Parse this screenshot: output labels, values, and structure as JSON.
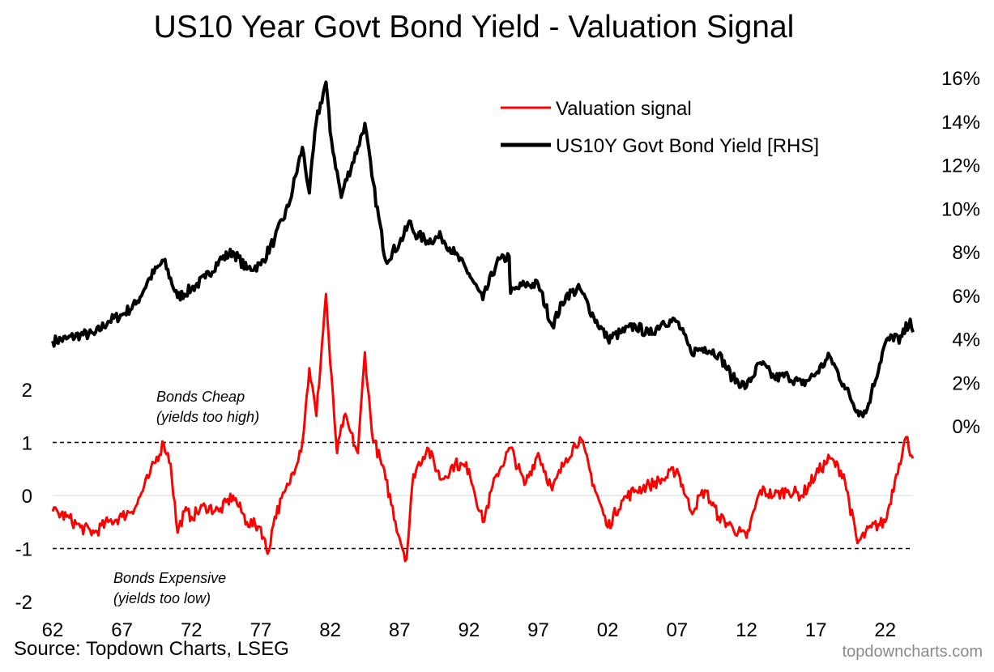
{
  "chart_data": {
    "type": "line",
    "title": "US10 Year Govt Bond Yield - Valuation Signal",
    "x_axis": {
      "range": [
        1962,
        2024
      ],
      "tick_values": [
        1962,
        1967,
        1972,
        1977,
        1982,
        1987,
        1992,
        1997,
        2002,
        2007,
        2012,
        2017,
        2022
      ],
      "tick_labels": [
        "62",
        "67",
        "72",
        "77",
        "82",
        "87",
        "92",
        "97",
        "02",
        "07",
        "12",
        "17",
        "22"
      ]
    },
    "left_axis": {
      "range": [
        -2,
        2
      ],
      "ticks": [
        2,
        1,
        0,
        -1,
        -2
      ],
      "tick_labels": [
        "2",
        "1",
        "0",
        "-1",
        "-2"
      ]
    },
    "right_axis": {
      "range": [
        0,
        16
      ],
      "ticks": [
        16,
        14,
        12,
        10,
        8,
        6,
        4,
        2,
        0
      ],
      "tick_labels": [
        "16%",
        "14%",
        "12%",
        "10%",
        "8%",
        "6%",
        "4%",
        "2%",
        "0%"
      ]
    },
    "reference_lines": [
      {
        "axis": "left",
        "value": 1,
        "style": "dashed"
      },
      {
        "axis": "left",
        "value": -1,
        "style": "dashed"
      },
      {
        "axis": "left",
        "value": 0,
        "style": "solid-light"
      }
    ],
    "legend": {
      "position": "top-right",
      "entries": [
        {
          "label": "Valuation signal",
          "color": "#ff0000"
        },
        {
          "label": "US10Y Govt Bond Yield [RHS]",
          "color": "#000000"
        }
      ]
    },
    "annotations": [
      {
        "lines": [
          "Bonds Cheap",
          "(yields too high)"
        ]
      },
      {
        "lines": [
          "Bonds Expensive",
          "(yields too low)"
        ]
      }
    ],
    "series": [
      {
        "name": "US10Y Govt Bond Yield [RHS]",
        "axis": "right",
        "color": "#000000",
        "x": [
          1962,
          1963,
          1964,
          1965,
          1966,
          1967,
          1968,
          1969,
          1970,
          1971,
          1972,
          1973,
          1974,
          1975,
          1976,
          1977,
          1978,
          1979,
          1980,
          1980.5,
          1981,
          1981.7,
          1982,
          1982.8,
          1983,
          1984,
          1984.5,
          1985,
          1986,
          1987,
          1987.8,
          1988,
          1989,
          1990,
          1991,
          1992,
          1993,
          1994,
          1994.9,
          1995,
          1996,
          1997,
          1998,
          1999,
          2000,
          2001,
          2002,
          2003,
          2004,
          2005,
          2006,
          2007,
          2008,
          2009,
          2010,
          2011,
          2012,
          2013,
          2014,
          2015,
          2016,
          2017,
          2018,
          2019,
          2020,
          2020.6,
          2021,
          2022,
          2022.8,
          2023,
          2023.8,
          2024
        ],
        "values": [
          3.9,
          4.0,
          4.2,
          4.2,
          4.8,
          5.1,
          5.6,
          6.8,
          7.6,
          5.9,
          6.3,
          6.8,
          7.6,
          8.0,
          7.2,
          7.4,
          8.6,
          10.1,
          12.8,
          10.7,
          14.0,
          15.8,
          13.5,
          10.5,
          11.0,
          12.8,
          13.9,
          11.5,
          7.6,
          8.4,
          9.4,
          8.9,
          8.5,
          8.7,
          7.9,
          7.0,
          5.8,
          7.5,
          7.8,
          6.1,
          6.5,
          6.5,
          4.6,
          6.0,
          6.3,
          5.0,
          4.0,
          4.3,
          4.6,
          4.2,
          4.8,
          4.8,
          3.4,
          3.6,
          3.3,
          2.2,
          1.8,
          2.9,
          2.2,
          2.3,
          1.9,
          2.4,
          3.2,
          1.9,
          0.7,
          0.6,
          1.5,
          3.8,
          4.2,
          3.8,
          4.9,
          4.3
        ]
      },
      {
        "name": "Valuation signal",
        "axis": "left",
        "color": "#ff0000",
        "x": [
          1962,
          1963,
          1964,
          1965,
          1966,
          1967,
          1968,
          1969,
          1970,
          1970.5,
          1971,
          1971.5,
          1972,
          1973,
          1974,
          1975,
          1976,
          1977,
          1977.5,
          1978,
          1979,
          1980,
          1980.5,
          1981,
          1981.7,
          1982,
          1982.5,
          1983,
          1984,
          1984.5,
          1985,
          1986,
          1987,
          1987.5,
          1988,
          1989,
          1990,
          1991,
          1992,
          1993,
          1994,
          1995,
          1996,
          1997,
          1998,
          1999,
          2000,
          2001,
          2002,
          2003,
          2004,
          2005,
          2006,
          2007,
          2008,
          2009,
          2010,
          2011,
          2012,
          2013,
          2014,
          2015,
          2016,
          2017,
          2018,
          2019,
          2020,
          2021,
          2022,
          2022.8,
          2023,
          2023.5,
          2024
        ],
        "values": [
          -0.3,
          -0.4,
          -0.6,
          -0.7,
          -0.5,
          -0.4,
          -0.2,
          0.4,
          1.0,
          0.6,
          -0.7,
          -0.3,
          -0.4,
          -0.2,
          -0.3,
          0.0,
          -0.5,
          -0.6,
          -1.1,
          -0.4,
          0.2,
          1.0,
          2.4,
          1.5,
          3.8,
          2.5,
          0.8,
          1.5,
          0.8,
          2.7,
          1.2,
          0.3,
          -0.8,
          -1.2,
          0.4,
          0.9,
          0.3,
          0.6,
          0.5,
          -0.5,
          0.4,
          0.9,
          0.2,
          0.8,
          0.1,
          0.7,
          1.1,
          0.2,
          -0.6,
          -0.1,
          0.1,
          0.2,
          0.3,
          0.5,
          -0.3,
          0.1,
          -0.4,
          -0.6,
          -0.8,
          0.1,
          0.0,
          0.1,
          0.0,
          0.4,
          0.7,
          0.4,
          -0.9,
          -0.6,
          -0.5,
          0.4,
          0.6,
          1.1,
          0.7
        ]
      }
    ]
  },
  "source": "Source: Topdown Charts, LSEG",
  "watermark": "topdowncharts.com"
}
